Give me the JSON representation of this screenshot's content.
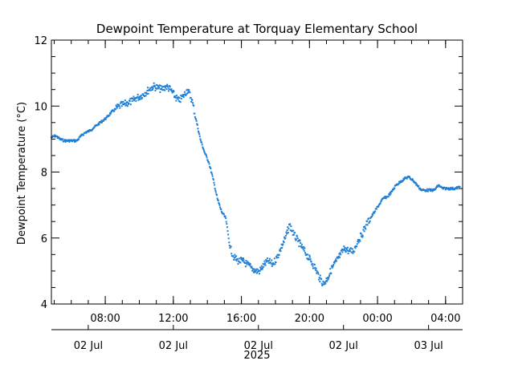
{
  "chart_data": {
    "type": "scatter",
    "title": "Dewpoint Temperature at Torquay Elementary School",
    "ylabel": "Dewpoint Temperature (°C)",
    "xlabel": "",
    "year_label": "2025",
    "ylim": [
      4,
      12
    ],
    "xlim": [
      "2025-07-02T04:50",
      "2025-07-03T05:00"
    ],
    "y_ticks": [
      {
        "value": 4,
        "label": "4"
      },
      {
        "value": 6,
        "label": "6"
      },
      {
        "value": 8,
        "label": "8"
      },
      {
        "value": 10,
        "label": "10"
      },
      {
        "value": 12,
        "label": "12"
      }
    ],
    "x_time_ticks": [
      {
        "time": "2025-07-02T08:00",
        "label": "08:00"
      },
      {
        "time": "2025-07-02T12:00",
        "label": "12:00"
      },
      {
        "time": "2025-07-02T16:00",
        "label": "16:00"
      },
      {
        "time": "2025-07-02T20:00",
        "label": "20:00"
      },
      {
        "time": "2025-07-03T00:00",
        "label": "00:00"
      },
      {
        "time": "2025-07-03T04:00",
        "label": "04:00"
      }
    ],
    "x_date_ticks": [
      {
        "time": "2025-07-02T07:00",
        "label": "02 Jul"
      },
      {
        "time": "2025-07-02T12:00",
        "label": "02 Jul"
      },
      {
        "time": "2025-07-02T17:00",
        "label": "02 Jul"
      },
      {
        "time": "2025-07-02T22:00",
        "label": "02 Jul"
      },
      {
        "time": "2025-07-03T03:00",
        "label": "03 Jul"
      }
    ],
    "grid": false,
    "marker_color": "#1f7fd6",
    "series": [
      {
        "points": [
          [
            "2025-07-02T04:50",
            9.05
          ],
          [
            "2025-07-02T05:05",
            9.1
          ],
          [
            "2025-07-02T05:20",
            9.0
          ],
          [
            "2025-07-02T05:35",
            8.95
          ],
          [
            "2025-07-02T05:50",
            8.95
          ],
          [
            "2025-07-02T06:05",
            8.95
          ],
          [
            "2025-07-02T06:20",
            8.95
          ],
          [
            "2025-07-02T06:35",
            9.1
          ],
          [
            "2025-07-02T06:50",
            9.2
          ],
          [
            "2025-07-02T07:05",
            9.25
          ],
          [
            "2025-07-02T07:20",
            9.35
          ],
          [
            "2025-07-02T07:35",
            9.45
          ],
          [
            "2025-07-02T07:50",
            9.55
          ],
          [
            "2025-07-02T08:05",
            9.65
          ],
          [
            "2025-07-02T08:20",
            9.8
          ],
          [
            "2025-07-02T08:35",
            9.9
          ],
          [
            "2025-07-02T08:50",
            10.0
          ],
          [
            "2025-07-02T09:05",
            10.05
          ],
          [
            "2025-07-02T09:20",
            10.1
          ],
          [
            "2025-07-02T09:35",
            10.15
          ],
          [
            "2025-07-02T09:50",
            10.25
          ],
          [
            "2025-07-02T10:05",
            10.3
          ],
          [
            "2025-07-02T10:20",
            10.4
          ],
          [
            "2025-07-02T10:35",
            10.5
          ],
          [
            "2025-07-02T10:50",
            10.6
          ],
          [
            "2025-07-02T11:05",
            10.55
          ],
          [
            "2025-07-02T11:20",
            10.5
          ],
          [
            "2025-07-02T11:35",
            10.6
          ],
          [
            "2025-07-02T11:50",
            10.5
          ],
          [
            "2025-07-02T12:05",
            10.3
          ],
          [
            "2025-07-02T12:20",
            10.15
          ],
          [
            "2025-07-02T12:35",
            10.3
          ],
          [
            "2025-07-02T12:50",
            10.5
          ],
          [
            "2025-07-02T13:05",
            10.2
          ],
          [
            "2025-07-02T13:20",
            9.6
          ],
          [
            "2025-07-02T13:35",
            9.0
          ],
          [
            "2025-07-02T13:50",
            8.6
          ],
          [
            "2025-07-02T14:05",
            8.3
          ],
          [
            "2025-07-02T14:20",
            7.8
          ],
          [
            "2025-07-02T14:35",
            7.2
          ],
          [
            "2025-07-02T14:50",
            6.8
          ],
          [
            "2025-07-02T15:05",
            6.6
          ],
          [
            "2025-07-02T15:20",
            5.7
          ],
          [
            "2025-07-02T15:35",
            5.4
          ],
          [
            "2025-07-02T15:50",
            5.3
          ],
          [
            "2025-07-02T16:05",
            5.3
          ],
          [
            "2025-07-02T16:20",
            5.2
          ],
          [
            "2025-07-02T16:35",
            5.1
          ],
          [
            "2025-07-02T16:50",
            5.0
          ],
          [
            "2025-07-02T17:05",
            5.0
          ],
          [
            "2025-07-02T17:20",
            5.2
          ],
          [
            "2025-07-02T17:35",
            5.3
          ],
          [
            "2025-07-02T17:50",
            5.2
          ],
          [
            "2025-07-02T18:05",
            5.4
          ],
          [
            "2025-07-02T18:20",
            5.7
          ],
          [
            "2025-07-02T18:35",
            6.0
          ],
          [
            "2025-07-02T18:50",
            6.4
          ],
          [
            "2025-07-02T19:05",
            6.1
          ],
          [
            "2025-07-02T19:20",
            5.9
          ],
          [
            "2025-07-02T19:35",
            5.7
          ],
          [
            "2025-07-02T19:50",
            5.5
          ],
          [
            "2025-07-02T20:05",
            5.3
          ],
          [
            "2025-07-02T20:20",
            5.1
          ],
          [
            "2025-07-02T20:35",
            4.8
          ],
          [
            "2025-07-02T20:50",
            4.6
          ],
          [
            "2025-07-02T21:05",
            4.8
          ],
          [
            "2025-07-02T21:20",
            5.1
          ],
          [
            "2025-07-02T21:35",
            5.3
          ],
          [
            "2025-07-02T21:50",
            5.5
          ],
          [
            "2025-07-02T22:05",
            5.7
          ],
          [
            "2025-07-02T22:20",
            5.6
          ],
          [
            "2025-07-02T22:35",
            5.6
          ],
          [
            "2025-07-02T22:50",
            5.9
          ],
          [
            "2025-07-02T23:05",
            6.1
          ],
          [
            "2025-07-02T23:20",
            6.4
          ],
          [
            "2025-07-02T23:35",
            6.6
          ],
          [
            "2025-07-02T23:50",
            6.8
          ],
          [
            "2025-07-03T00:05",
            7.0
          ],
          [
            "2025-07-03T00:20",
            7.2
          ],
          [
            "2025-07-03T00:35",
            7.25
          ],
          [
            "2025-07-03T00:50",
            7.4
          ],
          [
            "2025-07-03T01:05",
            7.6
          ],
          [
            "2025-07-03T01:20",
            7.7
          ],
          [
            "2025-07-03T01:35",
            7.8
          ],
          [
            "2025-07-03T01:50",
            7.85
          ],
          [
            "2025-07-03T02:05",
            7.75
          ],
          [
            "2025-07-03T02:20",
            7.6
          ],
          [
            "2025-07-03T02:35",
            7.45
          ],
          [
            "2025-07-03T02:50",
            7.45
          ],
          [
            "2025-07-03T03:05",
            7.45
          ],
          [
            "2025-07-03T03:20",
            7.45
          ],
          [
            "2025-07-03T03:35",
            7.6
          ],
          [
            "2025-07-03T03:50",
            7.5
          ],
          [
            "2025-07-03T04:05",
            7.5
          ],
          [
            "2025-07-03T04:20",
            7.5
          ],
          [
            "2025-07-03T04:35",
            7.5
          ],
          [
            "2025-07-03T04:50",
            7.55
          ]
        ]
      }
    ]
  }
}
